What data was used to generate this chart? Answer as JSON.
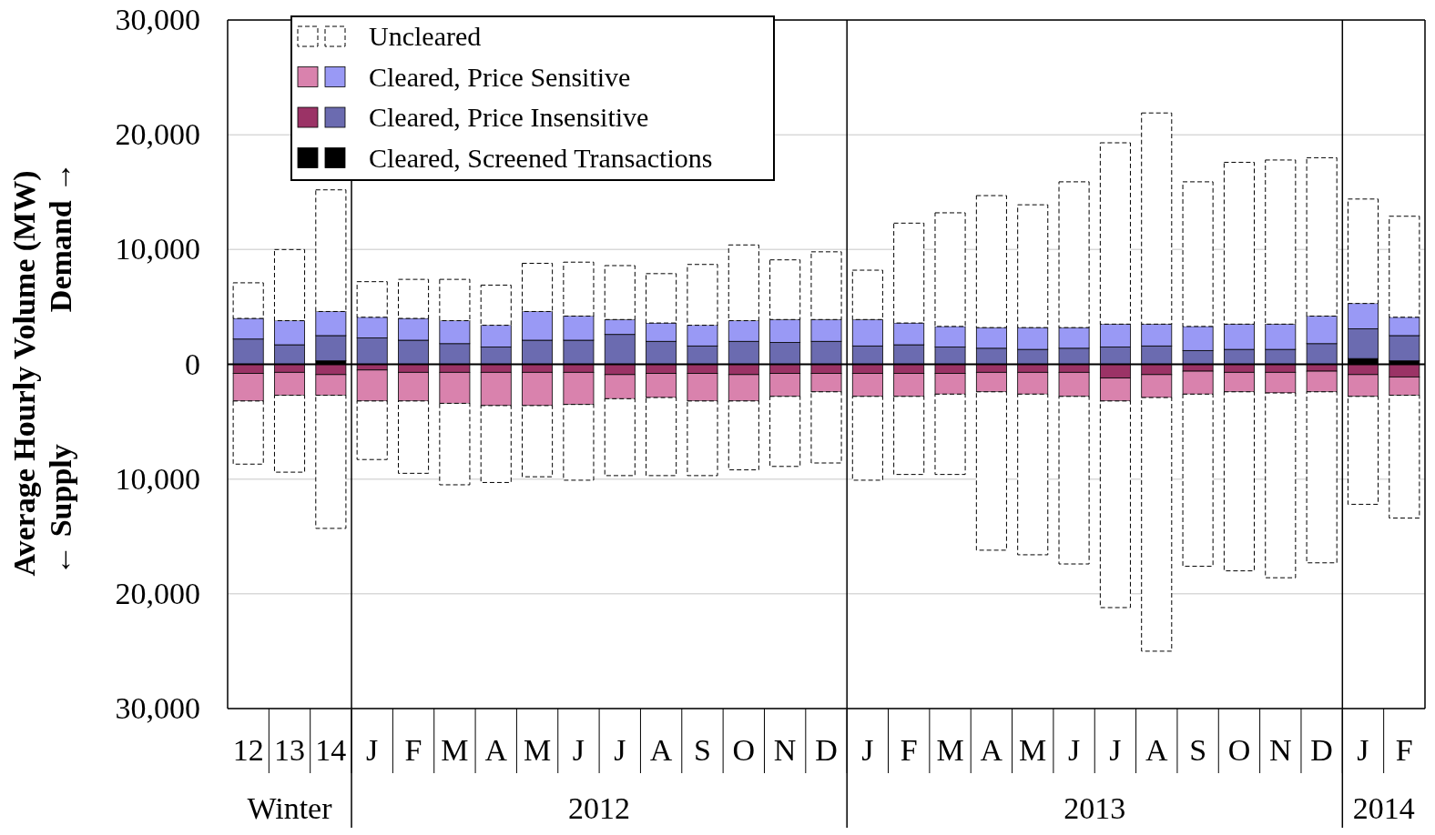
{
  "chart_data": {
    "type": "bar",
    "stacked": true,
    "ylabel": "Average Hourly Volume (MW)\n← Supply   Demand →",
    "categories": [
      "12",
      "13",
      "14",
      "J",
      "F",
      "M",
      "A",
      "M",
      "J",
      "J",
      "A",
      "S",
      "O",
      "N",
      "D",
      "J",
      "F",
      "M",
      "A",
      "M",
      "J",
      "J",
      "A",
      "S",
      "O",
      "N",
      "D",
      "J",
      "F"
    ],
    "annotations": [
      "Winter",
      "2012",
      "2013",
      "2014"
    ],
    "ylim": [
      -30000,
      30000
    ],
    "yticks": [
      {
        "value": -30000,
        "label": "30,000"
      },
      {
        "value": -20000,
        "label": "20,000"
      },
      {
        "value": -10000,
        "label": "10,000"
      },
      0,
      {
        "value": 10000,
        "label": "10,000"
      },
      {
        "value": 20000,
        "label": "20,000"
      },
      {
        "value": 30000,
        "label": "30,000"
      }
    ],
    "grid": "y",
    "legend": "top left",
    "series": [
      {
        "name": "Cleared, Screened Transactions",
        "color": "#000000",
        "values": [
          null,
          null,
          300,
          null,
          null,
          null,
          null,
          null,
          null,
          null,
          null,
          null,
          null,
          null,
          null,
          null,
          null,
          null,
          null,
          null,
          null,
          null,
          null,
          null,
          null,
          null,
          null,
          500,
          300
        ]
      },
      {
        "name": "Cleared, Price Insensitive",
        "color": "#6b6bb0",
        "values": [
          2200,
          1700,
          2200,
          2300,
          2100,
          1800,
          1500,
          2100,
          2100,
          2600,
          2000,
          1600,
          2000,
          1900,
          2000,
          1600,
          1700,
          1500,
          1400,
          1300,
          1400,
          1500,
          1600,
          1200,
          1300,
          1300,
          1800,
          2600,
          2200
        ]
      },
      {
        "name": "Cleared, Price Sensitive",
        "color": "#9999f5",
        "values": [
          1800,
          2100,
          2100,
          1800,
          1900,
          2000,
          1900,
          2500,
          2100,
          1300,
          1600,
          1800,
          1800,
          2000,
          1900,
          2300,
          1900,
          1800,
          1800,
          1900,
          1800,
          2000,
          1900,
          2100,
          2200,
          2200,
          2400,
          2200,
          1600
        ]
      },
      {
        "name": "Uncleared",
        "color": "#ffffff",
        "line_style": "dashed",
        "values": [
          3100,
          6200,
          10600,
          3100,
          3400,
          3600,
          3500,
          4200,
          4700,
          4700,
          4300,
          5300,
          6600,
          5200,
          5900,
          4300,
          8700,
          9900,
          11500,
          10700,
          12700,
          15800,
          18400,
          12600,
          14100,
          14300,
          13800,
          9100,
          8800
        ]
      },
      {
        "color": "#000000",
        "values": [
          null,
          null,
          null,
          null,
          null,
          null,
          null,
          null,
          null,
          null,
          null,
          null,
          null,
          null,
          null,
          null,
          null,
          null,
          null,
          null,
          null,
          null,
          null,
          null,
          null,
          null,
          null,
          null,
          null
        ]
      },
      {
        "color": "#9b3366",
        "values": [
          -800,
          -700,
          -900,
          -500,
          -700,
          -700,
          -700,
          -700,
          -700,
          -900,
          -800,
          -800,
          -900,
          -800,
          -800,
          -800,
          -800,
          -800,
          -700,
          -700,
          -700,
          -1200,
          -900,
          -600,
          -700,
          -700,
          -600,
          -900,
          -1100
        ]
      },
      {
        "color": "#d982ad",
        "values": [
          -2400,
          -2000,
          -1800,
          -2700,
          -2500,
          -2700,
          -2900,
          -2900,
          -2800,
          -2100,
          -2100,
          -2400,
          -2300,
          -2000,
          -1600,
          -2000,
          -2000,
          -1800,
          -1700,
          -1900,
          -2100,
          -2000,
          -2000,
          -2000,
          -1700,
          -1800,
          -1800,
          -1900,
          -1600
        ]
      },
      {
        "color": "#ffffff",
        "line_style": "dashed",
        "values": [
          -5500,
          -6700,
          -11600,
          -5100,
          -6300,
          -7100,
          -6700,
          -6200,
          -6600,
          -6700,
          -6800,
          -6500,
          -6000,
          -6100,
          -6200,
          -7300,
          -6800,
          -7000,
          -13800,
          -14000,
          -14600,
          -18000,
          -22100,
          -15000,
          -15600,
          -16100,
          -14900,
          -9400,
          -10700
        ]
      }
    ]
  }
}
